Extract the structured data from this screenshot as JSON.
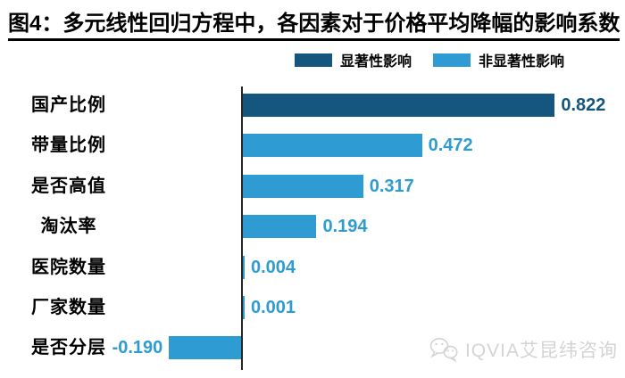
{
  "title": "图4：多元线性回归方程中，各因素对于价格平均降幅的影响系数",
  "legend": {
    "items": [
      {
        "key": "significant",
        "label": "显著性影响"
      },
      {
        "key": "non_significant",
        "label": "非显著性影响"
      }
    ]
  },
  "colors": {
    "significant": "#15567F",
    "non_significant": "#2E9CD2",
    "axis": "#262626",
    "title_text": "#000000",
    "watermark": "#D4D4D4"
  },
  "watermark": {
    "icon": "wechat-logo-icon",
    "text": "IQVIA艾昆纬咨询"
  },
  "chart_data": {
    "type": "bar",
    "orientation": "horizontal",
    "title": "图4：多元线性回归方程中，各因素对于价格平均降幅的影响系数",
    "categories": [
      "国产比例",
      "带量比例",
      "是否高值",
      "淘汰率",
      "医院数量",
      "厂家数量",
      "是否分层"
    ],
    "values": [
      0.822,
      0.472,
      0.317,
      0.194,
      0.004,
      0.001,
      -0.19
    ],
    "value_labels": [
      "0.822",
      "0.472",
      "0.317",
      "0.194",
      "0.004",
      "0.001",
      "-0.190"
    ],
    "significance": [
      "significant",
      "non_significant",
      "non_significant",
      "non_significant",
      "non_significant",
      "non_significant",
      "non_significant"
    ],
    "series": [
      {
        "name": "显著性影响",
        "color": "#15567F",
        "points": [
          {
            "category": "国产比例",
            "value": 0.822
          }
        ]
      },
      {
        "name": "非显著性影响",
        "color": "#2E9CD2",
        "points": [
          {
            "category": "带量比例",
            "value": 0.472
          },
          {
            "category": "是否高值",
            "value": 0.317
          },
          {
            "category": "淘汰率",
            "value": 0.194
          },
          {
            "category": "医院数量",
            "value": 0.004
          },
          {
            "category": "厂家数量",
            "value": 0.001
          },
          {
            "category": "是否分层",
            "value": -0.19
          }
        ]
      }
    ],
    "xlim": [
      -0.2,
      1.0
    ],
    "grid": false,
    "legend_position": "top",
    "value_label_style": "bold, colored to match bar, beside bar end"
  }
}
